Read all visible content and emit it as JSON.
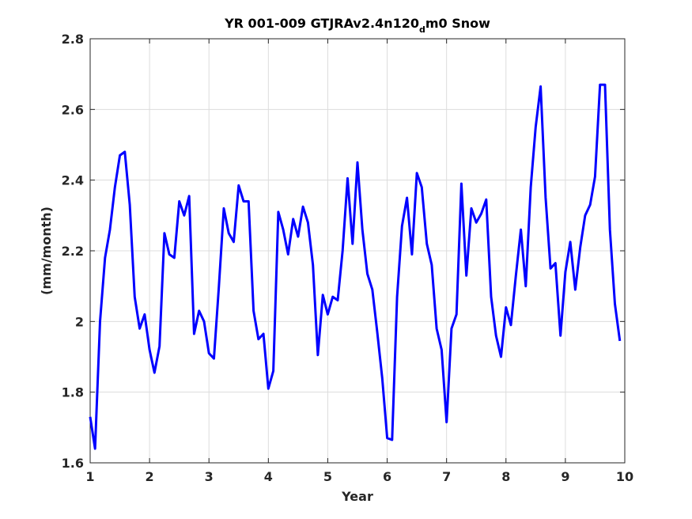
{
  "title": {
    "main": "YR 001-009 GTJRAv2.4n120",
    "subscript": "d",
    "suffix": "m0 Snow"
  },
  "chart_data": {
    "type": "line",
    "xlabel": "Year",
    "ylabel": "(mm/month)",
    "xlim": [
      1,
      10
    ],
    "ylim": [
      1.6,
      2.8
    ],
    "grid": true,
    "xticks": [
      "1",
      "2",
      "3",
      "4",
      "5",
      "6",
      "7",
      "8",
      "9",
      "10"
    ],
    "yticks": [
      "1.6",
      "1.8",
      "2",
      "2.2",
      "2.4",
      "2.6",
      "2.8"
    ],
    "line_color": "#0000ff",
    "series": [
      {
        "x": [
          1.0,
          1.083,
          1.167,
          1.25,
          1.333,
          1.417,
          1.5,
          1.583,
          1.667,
          1.75,
          1.833,
          1.917,
          2.0,
          2.083,
          2.167,
          2.25,
          2.333,
          2.417,
          2.5,
          2.583,
          2.667,
          2.75,
          2.833,
          2.917,
          3.0,
          3.083,
          3.167,
          3.25,
          3.333,
          3.417,
          3.5,
          3.583,
          3.667,
          3.75,
          3.833,
          3.917,
          4.0,
          4.083,
          4.167,
          4.25,
          4.333,
          4.417,
          4.5,
          4.583,
          4.667,
          4.75,
          4.833,
          4.917,
          5.0,
          5.083,
          5.167,
          5.25,
          5.333,
          5.417,
          5.5,
          5.583,
          5.667,
          5.75,
          5.833,
          5.917,
          6.0,
          6.083,
          6.167,
          6.25,
          6.333,
          6.417,
          6.5,
          6.583,
          6.667,
          6.75,
          6.833,
          6.917,
          7.0,
          7.083,
          7.167,
          7.25,
          7.333,
          7.417,
          7.5,
          7.583,
          7.667,
          7.75,
          7.833,
          7.917,
          8.0,
          8.083,
          8.167,
          8.25,
          8.333,
          8.417,
          8.5,
          8.583,
          8.667,
          8.75,
          8.833,
          8.917,
          9.0,
          9.083,
          9.167,
          9.25,
          9.333,
          9.417,
          9.5,
          9.583,
          9.667,
          9.75,
          9.833,
          9.917
        ],
        "y": [
          1.73,
          1.64,
          2.0,
          2.18,
          2.26,
          2.38,
          2.47,
          2.48,
          2.33,
          2.07,
          1.98,
          2.02,
          1.92,
          1.855,
          1.93,
          2.25,
          2.19,
          2.18,
          2.34,
          2.3,
          2.355,
          1.965,
          2.03,
          2.0,
          1.91,
          1.895,
          2.1,
          2.32,
          2.25,
          2.225,
          2.385,
          2.34,
          2.34,
          2.03,
          1.95,
          1.965,
          1.81,
          1.86,
          2.31,
          2.26,
          2.19,
          2.29,
          2.24,
          2.325,
          2.28,
          2.16,
          1.905,
          2.075,
          2.02,
          2.07,
          2.06,
          2.2,
          2.405,
          2.22,
          2.45,
          2.26,
          2.135,
          2.09,
          1.97,
          1.84,
          1.67,
          1.665,
          2.07,
          2.27,
          2.35,
          2.19,
          2.42,
          2.38,
          2.22,
          2.16,
          1.98,
          1.92,
          1.715,
          1.98,
          2.02,
          2.39,
          2.13,
          2.32,
          2.28,
          2.305,
          2.345,
          2.07,
          1.96,
          1.9,
          2.04,
          1.99,
          2.13,
          2.26,
          2.1,
          2.38,
          2.55,
          2.665,
          2.35,
          2.15,
          2.165,
          1.96,
          2.14,
          2.225,
          2.09,
          2.21,
          2.3,
          2.33,
          2.41,
          2.67,
          2.67,
          2.26,
          2.05,
          1.945
        ]
      }
    ]
  }
}
